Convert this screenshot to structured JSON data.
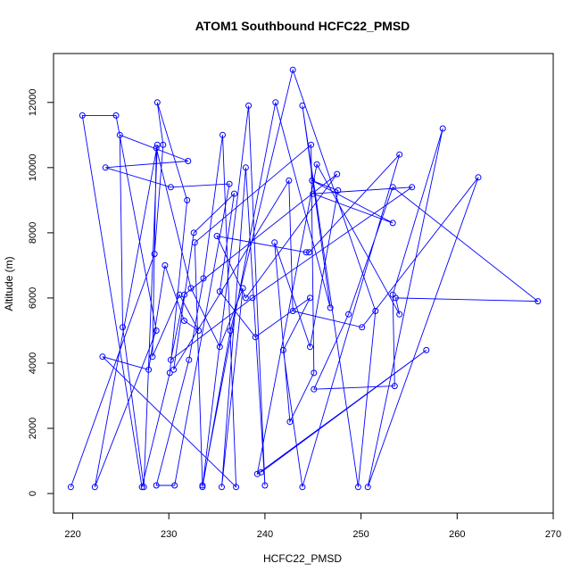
{
  "chart_data": {
    "type": "line",
    "title": "ATOM1 Southbound HCFC22_PMSD",
    "xlabel": "HCFC22_PMSD",
    "ylabel": "Altitude (m)",
    "xlim": [
      218,
      270
    ],
    "ylim": [
      -600,
      13500
    ],
    "x_ticks": [
      220,
      230,
      240,
      250,
      260,
      270
    ],
    "x_tick_labels": [
      "220",
      "230",
      "240",
      "250",
      "260",
      "270"
    ],
    "y_ticks": [
      0,
      2000,
      4000,
      6000,
      8000,
      10000,
      12000
    ],
    "y_tick_labels": [
      "0",
      "2000",
      "4000",
      "6000",
      "8000",
      "10000",
      "12000"
    ],
    "series_color": "#0000ff",
    "series": [
      {
        "points": [
          [
            219.8,
            200
          ],
          [
            228.5,
            7350
          ],
          [
            229.4,
            10700
          ],
          [
            228.8,
            12000
          ],
          [
            231.9,
            9000
          ],
          [
            230.1,
            3700
          ],
          [
            227.2,
            200
          ],
          [
            221.0,
            11600
          ],
          [
            224.5,
            11600
          ],
          [
            228.7,
            5000
          ],
          [
            222.3,
            200
          ],
          [
            228.8,
            10700
          ],
          [
            227.4,
            200
          ],
          [
            225.2,
            5100
          ],
          [
            224.9,
            11000
          ],
          [
            232.0,
            10200
          ],
          [
            223.4,
            10000
          ],
          [
            230.2,
            9400
          ],
          [
            236.3,
            9500
          ],
          [
            230.6,
            250
          ],
          [
            228.7,
            250
          ],
          [
            232.1,
            4100
          ],
          [
            233.6,
            6600
          ],
          [
            235.6,
            11000
          ],
          [
            237.0,
            200
          ],
          [
            223.1,
            4200
          ],
          [
            227.9,
            3800
          ],
          [
            229.6,
            7000
          ],
          [
            231.6,
            5300
          ],
          [
            233.1,
            5000
          ],
          [
            231.1,
            6100
          ],
          [
            228.3,
            4200
          ],
          [
            228.7,
            10600
          ],
          [
            232.3,
            6300
          ],
          [
            235.3,
            4500
          ],
          [
            237.7,
            6300
          ],
          [
            235.5,
            200
          ],
          [
            238.0,
            10000
          ],
          [
            240.0,
            250
          ],
          [
            238.3,
            11900
          ],
          [
            233.5,
            200
          ],
          [
            236.4,
            5000
          ],
          [
            242.9,
            13000
          ],
          [
            251.5,
            5600
          ],
          [
            249.7,
            200
          ],
          [
            243.9,
            11900
          ],
          [
            246.8,
            5700
          ],
          [
            241.1,
            12000
          ],
          [
            233.5,
            250
          ],
          [
            232.7,
            7700
          ],
          [
            244.8,
            10700
          ],
          [
            245.1,
            3700
          ],
          [
            242.6,
            2200
          ],
          [
            241.0,
            7700
          ],
          [
            244.7,
            4500
          ],
          [
            247.6,
            9300
          ],
          [
            244.9,
            9600
          ],
          [
            253.3,
            8300
          ],
          [
            245.0,
            9200
          ],
          [
            255.3,
            9400
          ],
          [
            238.7,
            6000
          ],
          [
            230.2,
            4100
          ],
          [
            231.6,
            6100
          ],
          [
            247.5,
            9800
          ],
          [
            238.0,
            6000
          ],
          [
            235.0,
            7900
          ],
          [
            244.3,
            7400
          ],
          [
            244.6,
            7400
          ],
          [
            254.0,
            10400
          ],
          [
            243.9,
            200
          ],
          [
            241.9,
            4400
          ],
          [
            244.7,
            6000
          ],
          [
            239.0,
            4800
          ],
          [
            235.3,
            6200
          ],
          [
            236.8,
            9200
          ],
          [
            232.6,
            8000
          ],
          [
            230.5,
            3800
          ],
          [
            242.5,
            9600
          ],
          [
            242.9,
            5600
          ],
          [
            250.1,
            5100
          ],
          [
            262.2,
            9700
          ],
          [
            250.7,
            200
          ],
          [
            258.5,
            11200
          ],
          [
            253.3,
            6100
          ],
          [
            253.5,
            3300
          ],
          [
            245.1,
            3200
          ],
          [
            248.7,
            5500
          ],
          [
            253.3,
            9400
          ],
          [
            268.4,
            5900
          ],
          [
            253.6,
            6000
          ],
          [
            254.0,
            5500
          ],
          [
            245.4,
            10100
          ],
          [
            239.2,
            600
          ],
          [
            256.8,
            4400
          ],
          [
            239.6,
            650
          ]
        ]
      }
    ]
  }
}
